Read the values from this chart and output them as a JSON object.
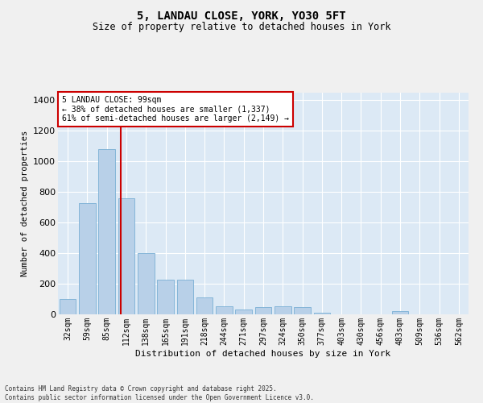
{
  "title": "5, LANDAU CLOSE, YORK, YO30 5FT",
  "subtitle": "Size of property relative to detached houses in York",
  "xlabel": "Distribution of detached houses by size in York",
  "ylabel": "Number of detached properties",
  "categories": [
    "32sqm",
    "59sqm",
    "85sqm",
    "112sqm",
    "138sqm",
    "165sqm",
    "191sqm",
    "218sqm",
    "244sqm",
    "271sqm",
    "297sqm",
    "324sqm",
    "350sqm",
    "377sqm",
    "403sqm",
    "430sqm",
    "456sqm",
    "483sqm",
    "509sqm",
    "536sqm",
    "562sqm"
  ],
  "values": [
    100,
    730,
    1080,
    760,
    400,
    225,
    225,
    110,
    55,
    30,
    50,
    55,
    50,
    10,
    0,
    0,
    0,
    20,
    0,
    0,
    0
  ],
  "bar_color": "#b8d0e8",
  "bar_edge_color": "#7aafd4",
  "vline_x_index": 2.72,
  "vline_color": "#cc0000",
  "annotation_title": "5 LANDAU CLOSE: 99sqm",
  "annotation_line1": "← 38% of detached houses are smaller (1,337)",
  "annotation_line2": "61% of semi-detached houses are larger (2,149) →",
  "annotation_box_facecolor": "#ffffff",
  "annotation_box_edgecolor": "#cc0000",
  "ylim": [
    0,
    1450
  ],
  "yticks": [
    0,
    200,
    400,
    600,
    800,
    1000,
    1200,
    1400
  ],
  "fig_facecolor": "#f0f0f0",
  "axes_facecolor": "#dce9f5",
  "grid_color": "#ffffff",
  "footer_line1": "Contains HM Land Registry data © Crown copyright and database right 2025.",
  "footer_line2": "Contains public sector information licensed under the Open Government Licence v3.0."
}
